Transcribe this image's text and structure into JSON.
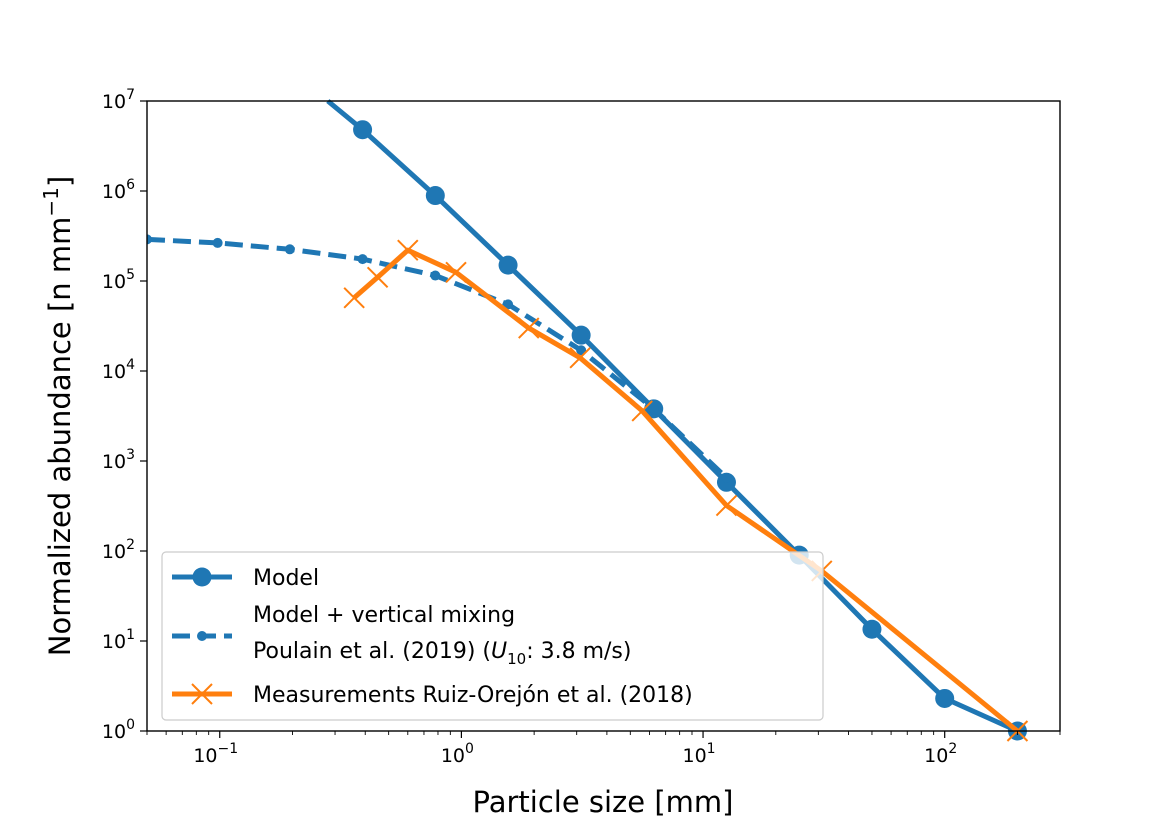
{
  "chart_data": {
    "type": "line",
    "xlabel": "Particle size [mm]",
    "ylabel": "Normalized abundance [n mm",
    "ylabel_sup": "−1",
    "ylabel_end": "]",
    "xscale": "log",
    "yscale": "log",
    "xlim": [
      0.05,
      300
    ],
    "ylim": [
      1,
      10000000
    ],
    "x_tick_labels": [
      {
        "base": "10",
        "exp": "−1",
        "value": 0.1
      },
      {
        "base": "10",
        "exp": "0",
        "value": 1
      },
      {
        "base": "10",
        "exp": "1",
        "value": 10
      },
      {
        "base": "10",
        "exp": "2",
        "value": 100
      }
    ],
    "y_tick_labels": [
      {
        "base": "10",
        "exp": "0",
        "value": 1
      },
      {
        "base": "10",
        "exp": "1",
        "value": 10
      },
      {
        "base": "10",
        "exp": "2",
        "value": 100
      },
      {
        "base": "10",
        "exp": "3",
        "value": 1000
      },
      {
        "base": "10",
        "exp": "4",
        "value": 10000
      },
      {
        "base": "10",
        "exp": "5",
        "value": 100000
      },
      {
        "base": "10",
        "exp": "6",
        "value": 1000000
      },
      {
        "base": "10",
        "exp": "7",
        "value": 10000000
      }
    ],
    "grid": false,
    "legend_position": "lower-left",
    "series": [
      {
        "name": "Model",
        "color": "#1f77b4",
        "linestyle": "solid",
        "marker": "circle",
        "x": [
          0.39,
          0.78,
          1.56,
          3.13,
          6.25,
          12.5,
          25,
          50,
          100,
          200
        ],
        "y": [
          4800000,
          890000,
          150000,
          25000,
          3800,
          580,
          90,
          13.5,
          2.3,
          1.0
        ],
        "leading_segment": {
          "x": 0.28,
          "y": 10000000
        }
      },
      {
        "name": "Model + vertical mixing",
        "name_line2": "Poulain et al. (2019) (",
        "name_line2_math": "U",
        "name_line2_sub": "10",
        "name_line2_end": ": 3.8 m/s)",
        "color": "#1f77b4",
        "linestyle": "dashed",
        "marker": "small-circle",
        "x": [
          0.05,
          0.098,
          0.195,
          0.39,
          0.78,
          1.56,
          3.13,
          6.25,
          12.5
        ],
        "y": [
          290000,
          265000,
          225000,
          175000,
          115000,
          55000,
          17000,
          3800,
          650
        ]
      },
      {
        "name": "Measurements Ruiz-Orejón et al. (2018)",
        "color": "#ff7f0e",
        "linestyle": "solid",
        "marker": "x",
        "x": [
          0.36,
          0.45,
          0.6,
          0.95,
          1.9,
          3.1,
          5.6,
          12.5,
          31,
          200
        ],
        "y": [
          65000,
          110000,
          220000,
          125000,
          30000,
          14000,
          3600,
          320,
          60,
          1.0
        ]
      }
    ]
  }
}
